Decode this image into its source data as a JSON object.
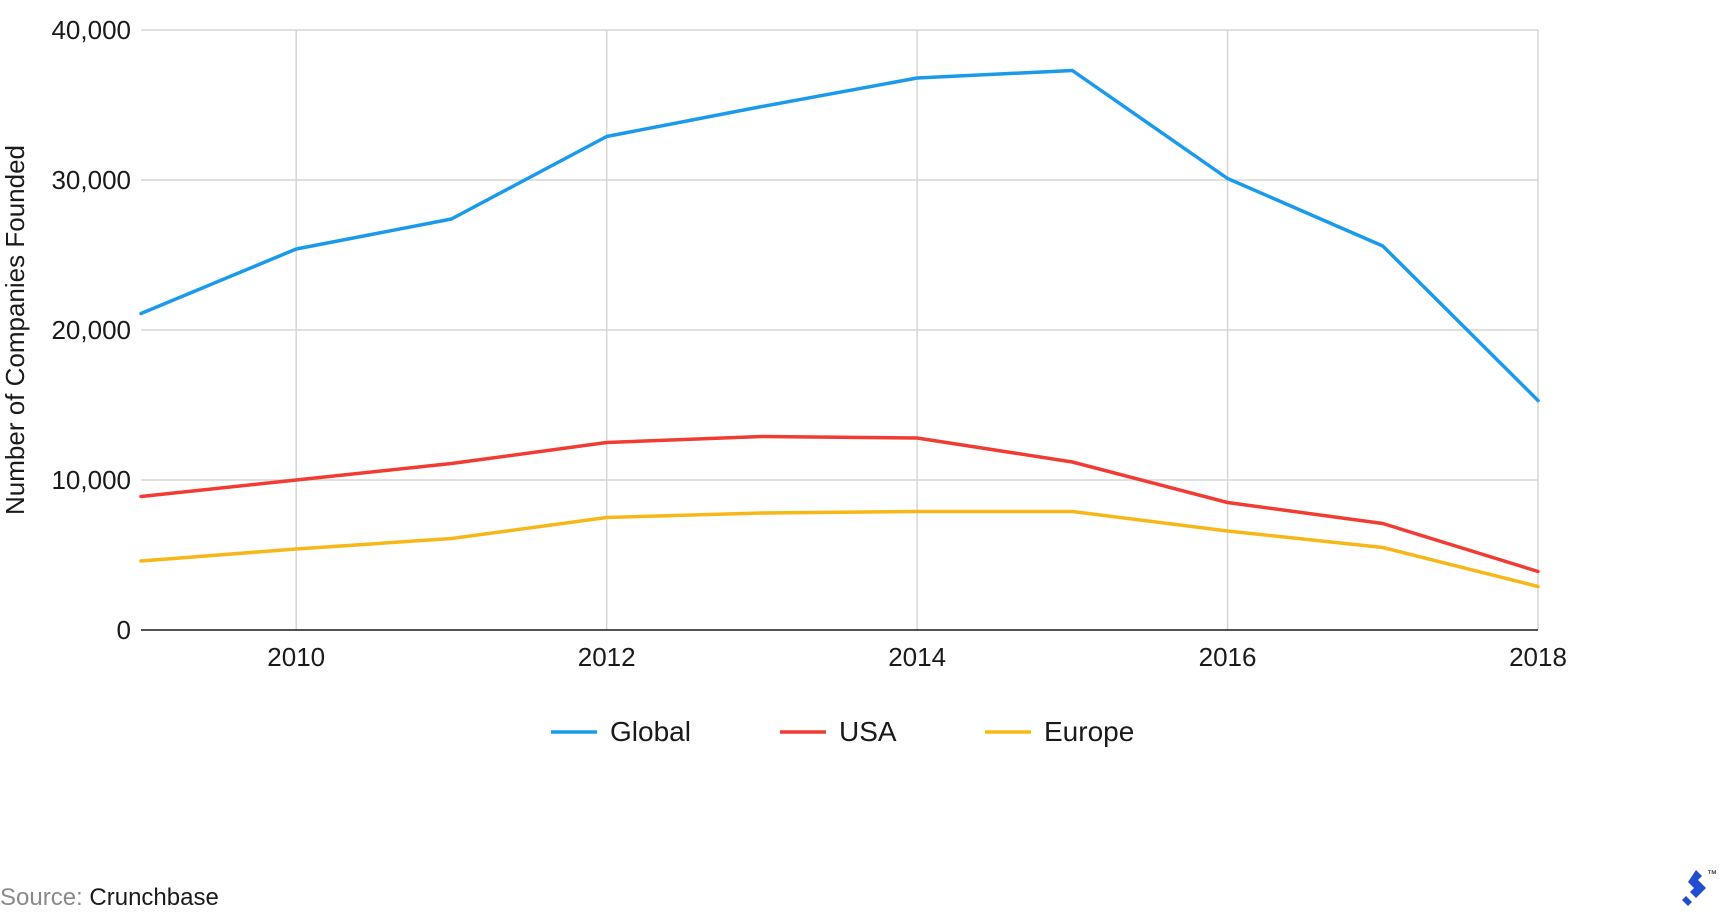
{
  "chart_data": {
    "type": "line",
    "x": [
      2009,
      2010,
      2011,
      2012,
      2013,
      2014,
      2015,
      2016,
      2017,
      2018
    ],
    "x_ticks": [
      "2010",
      "2012",
      "2014",
      "2016",
      "2018"
    ],
    "xlim": [
      2009,
      2018
    ],
    "ylabel": "Number of Companies Founded",
    "y_ticks": [
      "0",
      "10,000",
      "20,000",
      "30,000",
      "40,000"
    ],
    "ylim": [
      0,
      40000
    ],
    "grid": true,
    "legend_position": "bottom-center",
    "series": [
      {
        "name": "Global",
        "color": "#1a9aeb",
        "values": [
          21100,
          25400,
          27400,
          32900,
          34900,
          36800,
          37300,
          30100,
          25600,
          15300
        ]
      },
      {
        "name": "USA",
        "color": "#f03c32",
        "values": [
          8900,
          10000,
          11100,
          12500,
          12900,
          12800,
          11200,
          8500,
          7100,
          3900
        ]
      },
      {
        "name": "Europe",
        "color": "#f8b719",
        "values": [
          4600,
          5400,
          6100,
          7500,
          7800,
          7900,
          7900,
          6600,
          5500,
          2900
        ]
      }
    ]
  },
  "source": {
    "prefix": "Source:",
    "name": "Crunchbase"
  },
  "logo": {
    "icon": "toptal-logo-icon",
    "trademark": "™",
    "color": "#204ecf"
  }
}
